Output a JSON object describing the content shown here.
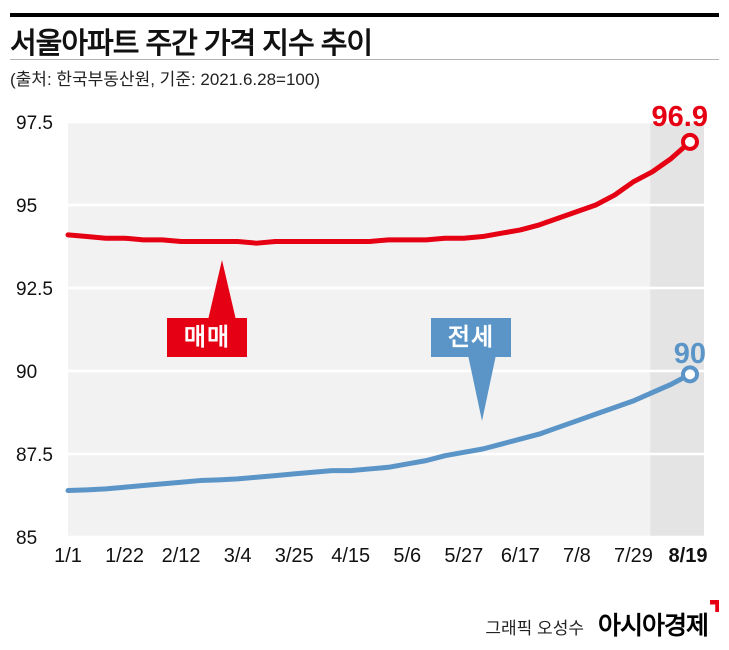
{
  "header": {
    "title": "서울아파트 주간 가격 지수 추이",
    "subtitle": "(출처: 한국부동산원, 기준: 2021.6.28=100)"
  },
  "callouts": {
    "sale_label": "매매",
    "jeonse_label": "전세"
  },
  "chart_data": {
    "type": "line",
    "title": "서울아파트 주간 가격 지수 추이",
    "xlabel": "",
    "ylabel": "",
    "ylim": [
      85,
      97.5
    ],
    "y_ticks": [
      97.5,
      95,
      92.5,
      90,
      87.5,
      85
    ],
    "x_tick_labels": [
      "1/1",
      "1/22",
      "2/12",
      "3/4",
      "3/25",
      "4/15",
      "5/6",
      "5/27",
      "6/17",
      "7/8",
      "7/29",
      "8/19"
    ],
    "x_tick_week_indices": [
      0,
      3,
      6,
      9,
      12,
      15,
      18,
      21,
      24,
      27,
      30,
      33
    ],
    "grid": true,
    "panel_color": "#f2f2f2",
    "highlight_color": "#e4e4e4",
    "highlight_last_n_weeks": 2,
    "legend_position": "in-chart-callouts",
    "series": [
      {
        "name": "매매",
        "key": "sale",
        "color": "#e60013",
        "end_label": "96.9",
        "values": [
          94.1,
          94.05,
          94.0,
          94.0,
          93.95,
          93.95,
          93.9,
          93.9,
          93.9,
          93.9,
          93.85,
          93.9,
          93.9,
          93.9,
          93.9,
          93.9,
          93.9,
          93.95,
          93.95,
          93.95,
          94.0,
          94.0,
          94.05,
          94.15,
          94.25,
          94.4,
          94.6,
          94.8,
          95.0,
          95.3,
          95.7,
          96.0,
          96.4,
          96.9
        ]
      },
      {
        "name": "전세",
        "key": "jeonse",
        "color": "#5b95c8",
        "end_label": "90",
        "values": [
          86.4,
          86.42,
          86.45,
          86.5,
          86.55,
          86.6,
          86.65,
          86.7,
          86.72,
          86.75,
          86.8,
          86.85,
          86.9,
          86.95,
          87.0,
          87.0,
          87.05,
          87.1,
          87.2,
          87.3,
          87.45,
          87.55,
          87.65,
          87.8,
          87.95,
          88.1,
          88.3,
          88.5,
          88.7,
          88.9,
          89.1,
          89.35,
          89.6,
          89.9
        ]
      }
    ]
  },
  "footer": {
    "credit": "그래픽 오성수",
    "logo": "아시아경제"
  }
}
